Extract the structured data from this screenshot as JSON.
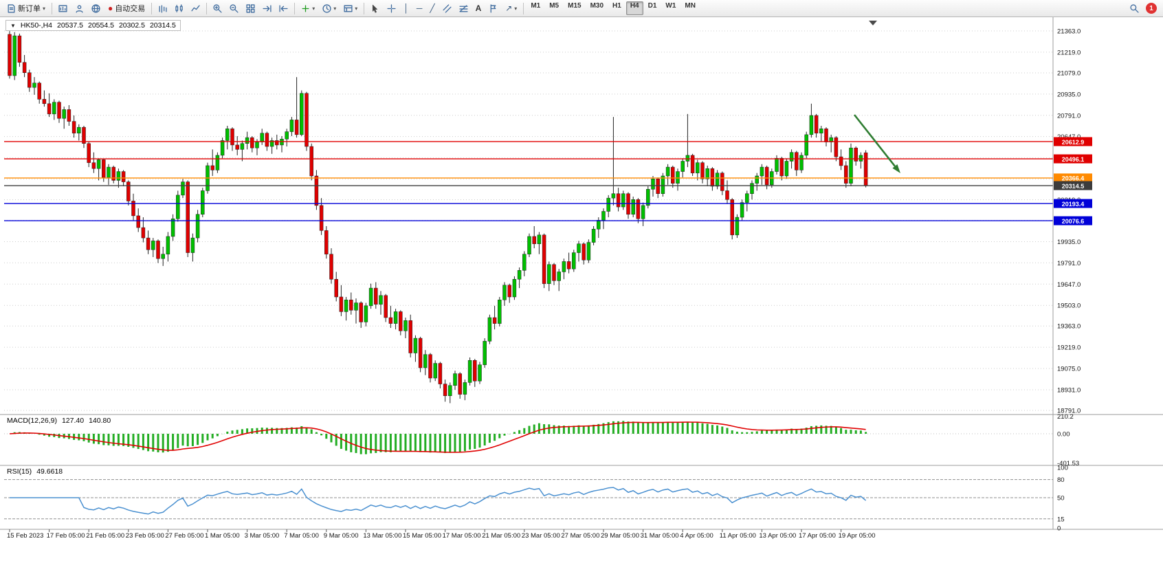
{
  "toolbar": {
    "new_order": "新订单",
    "auto_trading": "自动交易",
    "timeframes": [
      "M1",
      "M5",
      "M15",
      "M30",
      "H1",
      "H4",
      "D1",
      "W1",
      "MN"
    ],
    "active_timeframe": "H4",
    "notification_count": "1"
  },
  "icons": {
    "collapse": "▼",
    "caret": "▾",
    "auto_dot": "●",
    "vline": "│",
    "hline": "─",
    "trendline": "╱",
    "text_tool": "A",
    "shapes": "↗"
  },
  "chart": {
    "symbol_timeframe": "HK50-,H4",
    "ohlc": {
      "open": "20537.5",
      "high": "20554.5",
      "low": "20302.5",
      "close": "20314.5"
    }
  },
  "chart_data": {
    "type": "candlestick",
    "symbol": "HK50-",
    "timeframe": "H4",
    "colors": {
      "bull": "#00bf00",
      "bear": "#e00000",
      "wick": "#222222",
      "grid": "#cccccc",
      "macd_hist": "#23ad23",
      "macd_signal": "#e00000",
      "rsi": "#4a90d0"
    },
    "y_axis_labels": [
      21363,
      21219,
      21079,
      20935,
      20791,
      20647,
      20503,
      20359,
      20219,
      20079,
      19935,
      19791,
      19647,
      19503,
      19363,
      19219,
      19075,
      18931,
      18791
    ],
    "price_lines": [
      {
        "value": 20612.9,
        "label": "20612.9",
        "color": "#e00000"
      },
      {
        "value": 20496.1,
        "label": "20496.1",
        "color": "#e00000"
      },
      {
        "value": 20366.4,
        "label": "20366.4",
        "color": "#ff8a00"
      },
      {
        "value": 20314.5,
        "label": "20314.5",
        "color": "#3c3c3c"
      },
      {
        "value": 20193.4,
        "label": "20193.4",
        "color": "#0000d8"
      },
      {
        "value": 20076.6,
        "label": "20076.6",
        "color": "#0000d8"
      }
    ],
    "x_ticks": [
      {
        "i": 0,
        "label": "15 Feb 2023"
      },
      {
        "i": 8,
        "label": "17 Feb 05:00"
      },
      {
        "i": 16,
        "label": "21 Feb 05:00"
      },
      {
        "i": 24,
        "label": "23 Feb 05:00"
      },
      {
        "i": 32,
        "label": "27 Feb 05:00"
      },
      {
        "i": 40,
        "label": "1 Mar 05:00"
      },
      {
        "i": 48,
        "label": "3 Mar 05:00"
      },
      {
        "i": 56,
        "label": "7 Mar 05:00"
      },
      {
        "i": 64,
        "label": "9 Mar 05:00"
      },
      {
        "i": 72,
        "label": "13 Mar 05:00"
      },
      {
        "i": 80,
        "label": "15 Mar 05:00"
      },
      {
        "i": 88,
        "label": "17 Mar 05:00"
      },
      {
        "i": 96,
        "label": "21 Mar 05:00"
      },
      {
        "i": 104,
        "label": "23 Mar 05:00"
      },
      {
        "i": 112,
        "label": "27 Mar 05:00"
      },
      {
        "i": 120,
        "label": "29 Mar 05:00"
      },
      {
        "i": 128,
        "label": "31 Mar 05:00"
      },
      {
        "i": 136,
        "label": "4 Apr 05:00"
      },
      {
        "i": 144,
        "label": "11 Apr 05:00"
      },
      {
        "i": 152,
        "label": "13 Apr 05:00"
      },
      {
        "i": 160,
        "label": "17 Apr 05:00"
      },
      {
        "i": 168,
        "label": "19 Apr 05:00"
      }
    ],
    "indicators": {
      "macd": {
        "label": "MACD(12,26,9)",
        "value_main": "127.40",
        "value_signal": "140.80",
        "params": [
          12,
          26,
          9
        ],
        "axis": [
          "210.2",
          "0.00",
          "-401.53"
        ],
        "range": [
          210.2,
          -401.53
        ]
      },
      "rsi": {
        "label": "RSI(15)",
        "value": "49.6618",
        "period": 15,
        "axis": [
          "100",
          "80",
          "50",
          "15",
          "0"
        ],
        "levels": [
          80,
          50,
          15
        ]
      }
    },
    "annotation_arrow": {
      "color": "#2f7d32",
      "direction": "down-right"
    },
    "candles": [
      [
        21340,
        21362,
        21040,
        21060
      ],
      [
        21060,
        21355,
        21030,
        21330
      ],
      [
        21330,
        21345,
        21120,
        21150
      ],
      [
        21150,
        21200,
        21050,
        21080
      ],
      [
        21080,
        21100,
        20950,
        20980
      ],
      [
        20980,
        21050,
        20930,
        21010
      ],
      [
        21010,
        21020,
        20870,
        20900
      ],
      [
        20900,
        20960,
        20850,
        20870
      ],
      [
        20870,
        20940,
        20780,
        20800
      ],
      [
        20800,
        20900,
        20760,
        20880
      ],
      [
        20880,
        20890,
        20740,
        20770
      ],
      [
        20770,
        20850,
        20700,
        20830
      ],
      [
        20830,
        20860,
        20720,
        20750
      ],
      [
        20750,
        20790,
        20640,
        20670
      ],
      [
        20670,
        20730,
        20620,
        20710
      ],
      [
        20710,
        20720,
        20570,
        20600
      ],
      [
        20600,
        20610,
        20440,
        20470
      ],
      [
        20470,
        20540,
        20400,
        20430
      ],
      [
        20430,
        20500,
        20350,
        20490
      ],
      [
        20490,
        20495,
        20340,
        20370
      ],
      [
        20370,
        20460,
        20320,
        20440
      ],
      [
        20440,
        20450,
        20330,
        20350
      ],
      [
        20350,
        20430,
        20300,
        20410
      ],
      [
        20410,
        20420,
        20310,
        20340
      ],
      [
        20340,
        20350,
        20180,
        20210
      ],
      [
        20210,
        20260,
        20080,
        20110
      ],
      [
        20110,
        20160,
        20000,
        20030
      ],
      [
        20030,
        20100,
        19930,
        19960
      ],
      [
        19960,
        20010,
        19850,
        19880
      ],
      [
        19880,
        19960,
        19830,
        19940
      ],
      [
        19940,
        19950,
        19790,
        19820
      ],
      [
        19820,
        19900,
        19770,
        19850
      ],
      [
        19850,
        20000,
        19800,
        19970
      ],
      [
        19970,
        20120,
        19940,
        20090
      ],
      [
        20090,
        20280,
        20070,
        20250
      ],
      [
        20250,
        20360,
        20230,
        20340
      ],
      [
        20340,
        20350,
        19830,
        19860
      ],
      [
        19860,
        19990,
        19800,
        19960
      ],
      [
        19960,
        20150,
        19930,
        20120
      ],
      [
        20120,
        20300,
        20100,
        20280
      ],
      [
        20280,
        20470,
        20260,
        20450
      ],
      [
        20450,
        20560,
        20380,
        20420
      ],
      [
        20420,
        20540,
        20400,
        20520
      ],
      [
        20520,
        20640,
        20500,
        20620
      ],
      [
        20620,
        20720,
        20560,
        20700
      ],
      [
        20700,
        20710,
        20550,
        20590
      ],
      [
        20590,
        20650,
        20520,
        20560
      ],
      [
        20560,
        20620,
        20480,
        20600
      ],
      [
        20600,
        20680,
        20560,
        20640
      ],
      [
        20640,
        20650,
        20540,
        20570
      ],
      [
        20570,
        20630,
        20520,
        20610
      ],
      [
        20610,
        20700,
        20590,
        20670
      ],
      [
        20670,
        20680,
        20550,
        20580
      ],
      [
        20580,
        20640,
        20530,
        20620
      ],
      [
        20620,
        20660,
        20560,
        20590
      ],
      [
        20590,
        20650,
        20540,
        20630
      ],
      [
        20630,
        20700,
        20580,
        20680
      ],
      [
        20680,
        20780,
        20650,
        20760
      ],
      [
        20760,
        21050,
        20640,
        20660
      ],
      [
        20660,
        20960,
        20650,
        20940
      ],
      [
        20940,
        20950,
        20550,
        20580
      ],
      [
        20580,
        20600,
        20350,
        20380
      ],
      [
        20380,
        20420,
        20150,
        20180
      ],
      [
        20180,
        20230,
        19980,
        20010
      ],
      [
        20010,
        20040,
        19820,
        19850
      ],
      [
        19850,
        19890,
        19650,
        19680
      ],
      [
        19680,
        19730,
        19530,
        19560
      ],
      [
        19560,
        19640,
        19430,
        19460
      ],
      [
        19460,
        19560,
        19400,
        19540
      ],
      [
        19540,
        19590,
        19440,
        19470
      ],
      [
        19470,
        19550,
        19380,
        19520
      ],
      [
        19520,
        19530,
        19350,
        19390
      ],
      [
        19390,
        19520,
        19360,
        19500
      ],
      [
        19500,
        19650,
        19480,
        19620
      ],
      [
        19620,
        19660,
        19480,
        19510
      ],
      [
        19510,
        19600,
        19440,
        19570
      ],
      [
        19570,
        19580,
        19390,
        19420
      ],
      [
        19420,
        19500,
        19350,
        19380
      ],
      [
        19380,
        19480,
        19340,
        19460
      ],
      [
        19460,
        19470,
        19300,
        19330
      ],
      [
        19330,
        19420,
        19280,
        19400
      ],
      [
        19400,
        19440,
        19150,
        19180
      ],
      [
        19180,
        19300,
        19120,
        19280
      ],
      [
        19280,
        19290,
        19050,
        19080
      ],
      [
        19080,
        19200,
        19030,
        19170
      ],
      [
        19170,
        19180,
        18980,
        19010
      ],
      [
        19010,
        19130,
        18990,
        19110
      ],
      [
        19110,
        19120,
        18940,
        18970
      ],
      [
        18970,
        19000,
        18850,
        18890
      ],
      [
        18890,
        18980,
        18840,
        18960
      ],
      [
        18960,
        19060,
        18930,
        19040
      ],
      [
        19040,
        19050,
        18870,
        18900
      ],
      [
        18900,
        19000,
        18860,
        18980
      ],
      [
        18980,
        19150,
        18960,
        19130
      ],
      [
        19130,
        19140,
        18950,
        18990
      ],
      [
        18990,
        19120,
        18970,
        19100
      ],
      [
        19100,
        19280,
        19080,
        19260
      ],
      [
        19260,
        19440,
        19240,
        19420
      ],
      [
        19420,
        19500,
        19340,
        19380
      ],
      [
        19380,
        19560,
        19360,
        19540
      ],
      [
        19540,
        19660,
        19500,
        19640
      ],
      [
        19640,
        19650,
        19520,
        19560
      ],
      [
        19560,
        19700,
        19540,
        19680
      ],
      [
        19680,
        19760,
        19620,
        19740
      ],
      [
        19740,
        19870,
        19700,
        19850
      ],
      [
        19850,
        19990,
        19830,
        19970
      ],
      [
        19970,
        20040,
        19890,
        19920
      ],
      [
        19920,
        20000,
        19850,
        19980
      ],
      [
        19980,
        19990,
        19620,
        19650
      ],
      [
        19650,
        19800,
        19600,
        19780
      ],
      [
        19780,
        19790,
        19640,
        19670
      ],
      [
        19670,
        19750,
        19600,
        19730
      ],
      [
        19730,
        19820,
        19680,
        19800
      ],
      [
        19800,
        19860,
        19720,
        19750
      ],
      [
        19750,
        19880,
        19730,
        19860
      ],
      [
        19860,
        19940,
        19800,
        19920
      ],
      [
        19920,
        19930,
        19780,
        19810
      ],
      [
        19810,
        19950,
        19790,
        19930
      ],
      [
        19930,
        20040,
        19910,
        20020
      ],
      [
        20020,
        20100,
        19960,
        20080
      ],
      [
        20080,
        20160,
        20020,
        20140
      ],
      [
        20140,
        20250,
        20100,
        20230
      ],
      [
        20230,
        20780,
        20180,
        20260
      ],
      [
        20260,
        20300,
        20140,
        20170
      ],
      [
        20170,
        20280,
        20150,
        20260
      ],
      [
        20260,
        20270,
        20090,
        20120
      ],
      [
        20120,
        20240,
        20100,
        20220
      ],
      [
        20220,
        20230,
        20060,
        20090
      ],
      [
        20090,
        20200,
        20040,
        20180
      ],
      [
        20180,
        20310,
        20160,
        20290
      ],
      [
        20290,
        20380,
        20240,
        20360
      ],
      [
        20360,
        20370,
        20230,
        20260
      ],
      [
        20260,
        20400,
        20240,
        20380
      ],
      [
        20380,
        20460,
        20320,
        20440
      ],
      [
        20440,
        20450,
        20300,
        20330
      ],
      [
        20330,
        20430,
        20280,
        20410
      ],
      [
        20410,
        20500,
        20370,
        20480
      ],
      [
        20480,
        20800,
        20440,
        20520
      ],
      [
        20520,
        20530,
        20380,
        20400
      ],
      [
        20400,
        20490,
        20350,
        20470
      ],
      [
        20470,
        20480,
        20330,
        20360
      ],
      [
        20360,
        20450,
        20310,
        20430
      ],
      [
        20430,
        20440,
        20280,
        20310
      ],
      [
        20310,
        20420,
        20290,
        20400
      ],
      [
        20400,
        20410,
        20250,
        20280
      ],
      [
        20280,
        20350,
        20190,
        20220
      ],
      [
        20220,
        20230,
        19950,
        19980
      ],
      [
        19980,
        20120,
        19960,
        20100
      ],
      [
        20100,
        20220,
        20080,
        20200
      ],
      [
        20200,
        20280,
        20140,
        20260
      ],
      [
        20260,
        20350,
        20220,
        20330
      ],
      [
        20330,
        20400,
        20280,
        20380
      ],
      [
        20380,
        20460,
        20320,
        20440
      ],
      [
        20440,
        20450,
        20290,
        20320
      ],
      [
        20320,
        20430,
        20300,
        20410
      ],
      [
        20410,
        20520,
        20390,
        20500
      ],
      [
        20500,
        20510,
        20350,
        20380
      ],
      [
        20380,
        20500,
        20360,
        20480
      ],
      [
        20480,
        20560,
        20430,
        20540
      ],
      [
        20540,
        20550,
        20380,
        20420
      ],
      [
        20420,
        20540,
        20400,
        20520
      ],
      [
        20520,
        20680,
        20500,
        20660
      ],
      [
        20660,
        20870,
        20640,
        20790
      ],
      [
        20790,
        20800,
        20640,
        20670
      ],
      [
        20670,
        20720,
        20610,
        20700
      ],
      [
        20700,
        20710,
        20580,
        20610
      ],
      [
        20610,
        20660,
        20540,
        20640
      ],
      [
        20640,
        20650,
        20480,
        20510
      ],
      [
        20510,
        20560,
        20420,
        20450
      ],
      [
        20450,
        20480,
        20300,
        20330
      ],
      [
        20330,
        20600,
        20310,
        20570
      ],
      [
        20570,
        20580,
        20450,
        20480
      ],
      [
        20480,
        20540,
        20430,
        20520
      ],
      [
        20537.5,
        20554.5,
        20302.5,
        20314.5
      ]
    ]
  }
}
